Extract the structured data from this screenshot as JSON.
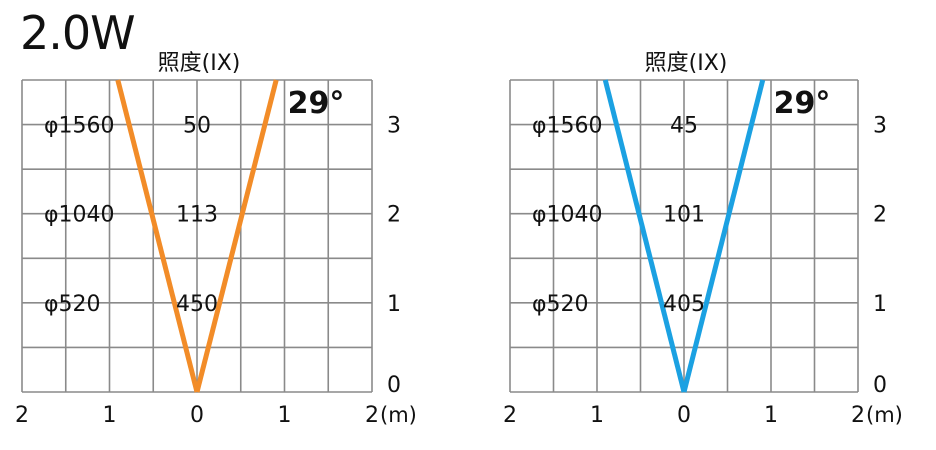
{
  "chart_data": {
    "type": "line",
    "power_label": "2.0W",
    "charts": [
      {
        "color": "#f28c28",
        "title": "照度(IX)",
        "beam_angle_label": "29°",
        "beam_angle_deg": 29,
        "x_ticks": [
          "2",
          "1",
          "0",
          "1",
          "2"
        ],
        "x_unit": "(m)",
        "y_ticks": [
          "0",
          "1",
          "2",
          "3"
        ],
        "xlim": [
          -2,
          2
        ],
        "ylim": [
          0,
          3.5
        ],
        "rows": [
          {
            "distance_m": 3,
            "diameter_label": "φ1560",
            "lux_label": "50"
          },
          {
            "distance_m": 2,
            "diameter_label": "φ1040",
            "lux_label": "113"
          },
          {
            "distance_m": 1,
            "diameter_label": "φ520",
            "lux_label": "450"
          }
        ]
      },
      {
        "color": "#1ba1e2",
        "title": "照度(IX)",
        "beam_angle_label": "29°",
        "beam_angle_deg": 29,
        "x_ticks": [
          "2",
          "1",
          "0",
          "1",
          "2"
        ],
        "x_unit": "(m)",
        "y_ticks": [
          "0",
          "1",
          "2",
          "3"
        ],
        "xlim": [
          -2,
          2
        ],
        "ylim": [
          0,
          3.5
        ],
        "rows": [
          {
            "distance_m": 3,
            "diameter_label": "φ1560",
            "lux_label": "45"
          },
          {
            "distance_m": 2,
            "diameter_label": "φ1040",
            "lux_label": "101"
          },
          {
            "distance_m": 1,
            "diameter_label": "φ520",
            "lux_label": "405"
          }
        ]
      }
    ]
  }
}
